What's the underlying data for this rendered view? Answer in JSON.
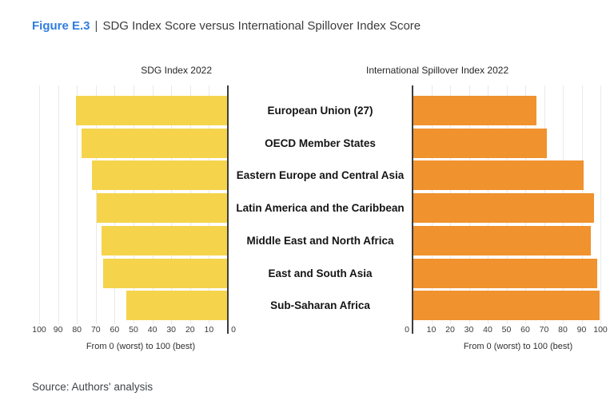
{
  "header": {
    "figure_label": "Figure E.3",
    "separator": "|",
    "title": "SDG Index Score versus International Spillover Index Score"
  },
  "charts": {
    "axis_caption": "From 0 (worst) to 100 (best)",
    "left": {
      "title": "SDG Index 2022",
      "color": "#F5D44C",
      "axis_reversed": true
    },
    "right": {
      "title": "International Spillover Index 2022",
      "color": "#F0922E",
      "axis_reversed": false
    }
  },
  "chart_data": {
    "type": "bar",
    "orientation": "horizontal",
    "categories": [
      "European Union (27)",
      "OECD Member States",
      "Eastern Europe and Central Asia",
      "Latin America and the Caribbean",
      "Middle East and North Africa",
      "East and South Asia",
      "Sub-Saharan Africa"
    ],
    "series": [
      {
        "name": "SDG Index 2022",
        "values": [
          80.5,
          77.5,
          72,
          69.5,
          67,
          66,
          54
        ]
      },
      {
        "name": "International Spillover Index 2022",
        "values": [
          66,
          71.5,
          91,
          96.5,
          95,
          98.5,
          99.5
        ]
      }
    ],
    "xlabel": "From 0 (worst) to 100 (best)",
    "xlim": [
      0,
      100
    ],
    "ticks": [
      0,
      10,
      20,
      30,
      40,
      50,
      60,
      70,
      80,
      90,
      100
    ],
    "grid": true,
    "legend": "none",
    "bar_colors": {
      "sdg": "#F5D44C",
      "spillover": "#F0922E"
    },
    "gridline_color": "#e9e9e9",
    "zero_axis_color": "#3d3d3d"
  },
  "footer": {
    "source": "Source: Authors' analysis"
  }
}
